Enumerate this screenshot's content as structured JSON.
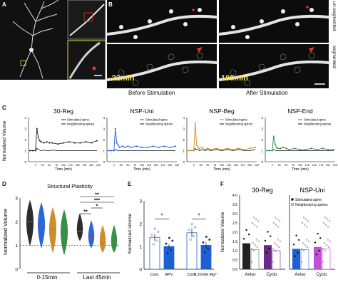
{
  "panels": {
    "A": {
      "letter": "A"
    },
    "B": {
      "letter": "B",
      "time_before": "-22min",
      "time_after": "180min",
      "caption_before": "Before Stimulation",
      "caption_after": "After Stimulation",
      "side_top": "un-segmented",
      "side_bottom": "segmented"
    },
    "C": {
      "letter": "C",
      "ylabel": "Normalized Volume",
      "xlabel": "Time (min)"
    },
    "D": {
      "letter": "D",
      "title": "Structural Plasticity",
      "ylabel": "Normalized Volume",
      "x_groups": [
        "0-15min",
        "Last 45min"
      ]
    },
    "E": {
      "letter": "E",
      "ylabel": "Normalized Volume",
      "categories": [
        "Cont.",
        "APV",
        "Cont.",
        "0.25mM Mg²⁺"
      ]
    },
    "F": {
      "letter": "F",
      "ylabel": "Normalized Volume",
      "titles": [
        "30-Reg",
        "NSP-Uni"
      ],
      "categories": [
        "Aniso",
        "Cyclo",
        "Aniso",
        "Cyclo"
      ],
      "legend": [
        "Stimulated spine",
        "Neighbouring spines"
      ]
    }
  },
  "chart_data": [
    {
      "id": "C",
      "type": "line",
      "ylabel": "Normalized Volume",
      "xlabel": "Time (min)",
      "ylim": [
        0,
        4
      ],
      "yticks": [
        "0",
        "1",
        "2",
        "3",
        "4"
      ],
      "xticks": [
        "0",
        "25",
        "50",
        "75",
        "100",
        "125",
        "150",
        "175",
        "200",
        "225"
      ],
      "colors": [
        "#222222",
        "#1f5fd6",
        "#c98a22",
        "#2e8b3e"
      ],
      "subplots": [
        {
          "title": "30-Reg",
          "color": "#222222",
          "legend": [
            "Stimulated spine",
            "Neighbouring spines"
          ],
          "x": [
            -20,
            -10,
            0,
            5,
            10,
            15,
            20,
            30,
            40,
            50,
            60,
            80,
            100,
            120,
            140,
            160,
            180,
            200,
            220
          ],
          "stim": [
            1.0,
            1.0,
            1.0,
            3.0,
            2.2,
            1.9,
            1.8,
            1.7,
            1.8,
            1.7,
            1.7,
            1.6,
            1.7,
            1.8,
            1.7,
            1.7,
            1.8,
            1.7,
            1.9
          ],
          "neigh": [
            1.0,
            1.0,
            1.0,
            1.2,
            1.1,
            1.05,
            1.0,
            1.05,
            1.0,
            1.0,
            1.05,
            1.0,
            1.0,
            1.0,
            1.0,
            1.0,
            1.0,
            1.0,
            1.0
          ]
        },
        {
          "title": "NSP-Uni",
          "color": "#1f5fd6",
          "legend": [
            "Stimulated spine",
            "Neighbouring spines"
          ],
          "x": [
            -20,
            -10,
            0,
            5,
            10,
            15,
            20,
            30,
            40,
            50,
            60,
            80,
            100,
            120,
            140,
            160,
            180,
            200,
            220
          ],
          "stim": [
            1.0,
            1.0,
            1.0,
            3.0,
            1.7,
            1.5,
            1.3,
            1.4,
            1.3,
            1.4,
            1.3,
            1.4,
            1.3,
            1.3,
            1.4,
            1.3,
            1.4,
            1.3,
            1.4
          ],
          "neigh": [
            1.0,
            1.0,
            1.0,
            1.1,
            1.05,
            1.0,
            1.0,
            1.0,
            1.0,
            1.0,
            1.0,
            1.0,
            1.0,
            1.0,
            1.0,
            1.0,
            1.0,
            1.0,
            1.0
          ]
        },
        {
          "title": "NSP-Beg",
          "color": "#c98a22",
          "legend": [
            "Stimulated spine",
            "Neighbouring spines"
          ],
          "x": [
            -20,
            -10,
            0,
            5,
            10,
            15,
            20,
            30,
            40,
            50,
            60,
            80,
            100,
            120,
            140,
            160,
            180,
            200,
            220
          ],
          "stim": [
            1.0,
            1.0,
            1.0,
            3.5,
            1.5,
            1.3,
            1.2,
            1.3,
            1.1,
            1.2,
            1.1,
            1.2,
            1.1,
            1.2,
            1.1,
            1.2,
            1.1,
            1.2,
            1.3
          ],
          "neigh": [
            1.0,
            1.0,
            1.0,
            1.2,
            1.1,
            1.1,
            1.0,
            1.1,
            1.0,
            1.1,
            1.0,
            1.1,
            1.0,
            1.1,
            1.0,
            1.1,
            1.0,
            1.0,
            1.1
          ]
        },
        {
          "title": "NSP-End",
          "color": "#2e8b3e",
          "legend": [
            "Stimulated spine",
            "Neighbouring spines"
          ],
          "x": [
            -20,
            -10,
            0,
            5,
            10,
            15,
            20,
            30,
            40,
            50,
            60,
            80,
            100,
            120,
            140,
            160,
            180,
            200,
            220
          ],
          "stim": [
            1.0,
            1.0,
            1.0,
            2.3,
            1.6,
            1.3,
            1.2,
            1.2,
            1.3,
            1.2,
            1.1,
            1.2,
            1.1,
            1.1,
            1.2,
            1.1,
            1.2,
            1.1,
            1.1
          ],
          "neigh": [
            1.0,
            1.0,
            1.0,
            1.1,
            1.05,
            1.0,
            1.0,
            1.0,
            1.0,
            1.0,
            1.0,
            1.0,
            1.0,
            1.0,
            1.0,
            1.0,
            1.0,
            1.0,
            1.0
          ]
        }
      ]
    },
    {
      "id": "D",
      "type": "violin",
      "title": "Structural Plasticity",
      "ylabel": "Normalized Volume",
      "ylim": [
        0,
        3
      ],
      "yticks": [
        "0",
        "1",
        "2",
        "3"
      ],
      "groups": [
        "0-15min",
        "Last 45min"
      ],
      "series": [
        {
          "name": "30-Reg",
          "color": "#222222",
          "medians": [
            2.0,
            1.6
          ]
        },
        {
          "name": "NSP-Uni",
          "color": "#1f5fd6",
          "medians": [
            1.9,
            1.3
          ]
        },
        {
          "name": "NSP-Beg",
          "color": "#c98a22",
          "medians": [
            1.7,
            1.1
          ]
        },
        {
          "name": "NSP-End",
          "color": "#2e8b3e",
          "medians": [
            1.6,
            1.1
          ]
        }
      ],
      "significance": [
        "**",
        "***",
        "*",
        "**"
      ]
    },
    {
      "id": "E",
      "type": "bar",
      "ylabel": "Normalized Volume",
      "ylim": [
        0,
        3
      ],
      "yticks": [
        "0",
        "1",
        "2",
        "3"
      ],
      "categories": [
        "Cont.",
        "APV",
        "Cont.",
        "0.25mM Mg²⁺"
      ],
      "values": [
        1.4,
        1.0,
        1.6,
        1.05
      ],
      "errors": [
        0.15,
        0.1,
        0.2,
        0.12
      ],
      "fills": [
        "#ffffff",
        "#1f5fd6",
        "#ffffff",
        "#1f5fd6"
      ],
      "significance": [
        "*",
        "*"
      ]
    },
    {
      "id": "F",
      "type": "bar",
      "ylabel": "Normalized Volume",
      "ylim": [
        0,
        4
      ],
      "yticks": [
        "0.0",
        "0.5",
        "1.0",
        "1.5",
        "2.0",
        "2.5",
        "3.0",
        "3.5",
        "4.0"
      ],
      "subplots": [
        {
          "title": "30-Reg",
          "categories": [
            "Aniso",
            "Cyclo"
          ],
          "stim": [
            1.4,
            1.3
          ],
          "neigh": [
            1.05,
            1.0
          ],
          "stim_colors": [
            "#222222",
            "#6a2a8a"
          ],
          "neigh_colors": [
            "#666666",
            "#6a2a8a"
          ]
        },
        {
          "title": "NSP-Uni",
          "categories": [
            "Aniso",
            "Cyclo"
          ],
          "stim": [
            1.1,
            1.2
          ],
          "neigh": [
            1.05,
            1.1
          ],
          "stim_colors": [
            "#1f5fd6",
            "#c24fd6"
          ],
          "neigh_colors": [
            "#1f5fd6",
            "#c24fd6"
          ]
        }
      ],
      "legend": [
        "Stimulated spine",
        "Neighbouring spines"
      ]
    }
  ]
}
